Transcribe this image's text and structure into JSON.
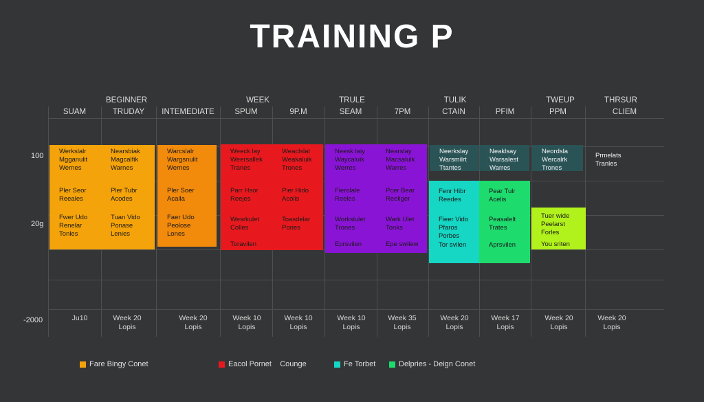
{
  "title": "TRAINING P",
  "group_headers": [
    "BEGINNER",
    "WEEK",
    "TRULE",
    "TULIK",
    "TWEUP",
    "THRSUR"
  ],
  "column_headers": [
    "SUAM",
    "TRUDAY",
    "INTEMEDIATE",
    "SPUM",
    "9P.M",
    "SEAM",
    "7PM",
    "CTAIN",
    "PFIM",
    "PPM",
    "CLIEM"
  ],
  "row_labels": [
    "100",
    "20g",
    "-2000"
  ],
  "blocks": [
    {
      "color": "#f5a30a",
      "light": false,
      "texts": [
        "Werkslalr\nMgganulit\nWernes",
        "Pler Seor\nReeales",
        "Fwer Udo\nRenelar\nTonles"
      ]
    },
    {
      "color": "#f5a30a",
      "light": false,
      "texts": [
        "Nearsbiak\nMagcalfik\nWarnes",
        "Pler Tubr\nAcodes",
        "Tuan Vido\nPonase\nLenies"
      ]
    },
    {
      "color": "#f28a0c",
      "light": false,
      "texts": [
        "Warcslalr\nWargsnulit\nWernes",
        "Pler Soer\nAcalla",
        "Faer Udo\nPeolose\nLones"
      ]
    },
    {
      "color": "#e8191e",
      "light": false,
      "texts": [
        "Weeck lay\nWeersallek\nTranes",
        "Parr Hsor\nReejes",
        "Wesrkulet\nColles",
        "Toravilen"
      ]
    },
    {
      "color": "#e8191e",
      "light": false,
      "texts": [
        "Weaclslat\nWeakaluik\nTrones",
        "Pier Hido\nAcolis",
        "Toasdelar\nPories"
      ]
    },
    {
      "color": "#8a14d6",
      "light": false,
      "texts": [
        "Neesk laiy\nWaycaluik\nWerres",
        "Fierolale\nReeles",
        "Workslulet\nTrones",
        "Eprsvilen"
      ]
    },
    {
      "color": "#8a14d6",
      "light": false,
      "texts": [
        "Nearslay\nMacsalulk\nWarres",
        "Pcer Bear\nReeliger",
        "Wark Ulet\nTonks",
        "Epe swilew"
      ]
    },
    {
      "color": "#2a5356",
      "light": true,
      "texts": [
        "Neerkslay\nWarsmilrt\nTtantes"
      ]
    },
    {
      "color": "#2a5356",
      "light": true,
      "texts": [
        "Neaklsay\nWarsalest\nWarres"
      ]
    },
    {
      "color": "#2a5356",
      "light": true,
      "texts": [
        "Neordsla\nWercalrk\nTrones"
      ]
    },
    {
      "color": "#16d6c4",
      "light": false,
      "texts": [
        "Fenr Hibr\nReedes",
        "Fieer Vido\nPfaros\nPorbes",
        "Tor svilen"
      ]
    },
    {
      "color": "#1edb6e",
      "light": false,
      "texts": [
        "Pear Tulr\nAcelis",
        "Peasalelt\nTrates",
        "Aprsvilen"
      ]
    },
    {
      "color": "#b2f21c",
      "light": false,
      "texts": [
        "Tuer wide\nPeelarst\nForles",
        "You sriten"
      ]
    }
  ],
  "side_note": "Prmelats\nTranles",
  "footer_labels": [
    "Ju10",
    "Week 20\nLopis",
    "Week 20\nLopis",
    "Week 10\nLopis",
    "Week 10\nLopis",
    "Week 10\nLopis",
    "Week 35\nLopis",
    "Week 20\nLopis",
    "Week 17\nLopis",
    "Week 20\nLopis",
    "Week 20\nLopis"
  ],
  "legend": [
    {
      "label": "Fare Bingy Conet",
      "color": "#f5a30a"
    },
    {
      "label": "Eacol Pornet    Counge",
      "color": "#e8191e"
    },
    {
      "label": "Fe Torbet",
      "color": "#16d6c4"
    },
    {
      "label": "Delpries - Deign Conet",
      "color": "#1edb6e"
    }
  ]
}
